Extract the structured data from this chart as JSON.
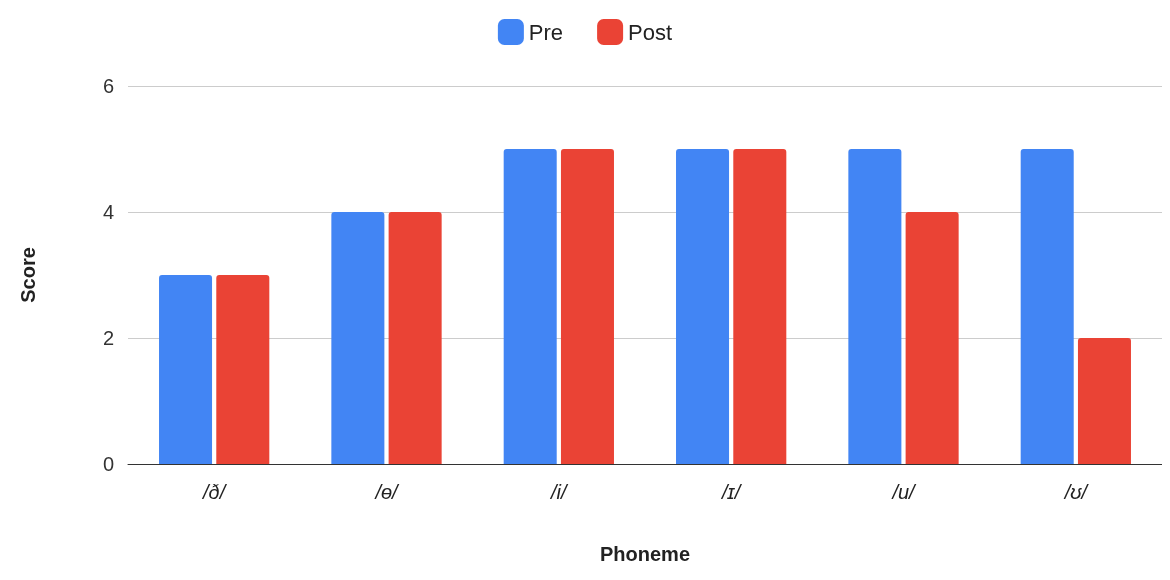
{
  "chart_data": {
    "type": "bar",
    "xlabel": "Phoneme",
    "ylabel": "Score",
    "categories": [
      "/ð/",
      "/ɵ/",
      "/i/",
      "/ɪ/",
      "/u/",
      "/ʊ/"
    ],
    "series": [
      {
        "name": "Pre",
        "color": "#4285f4",
        "values": [
          3,
          4,
          5,
          5,
          5,
          5
        ]
      },
      {
        "name": "Post",
        "color": "#ea4335",
        "values": [
          3,
          4,
          5,
          5,
          4,
          2
        ]
      }
    ],
    "ylim": [
      0,
      6
    ],
    "yticks": [
      0,
      2,
      4,
      6
    ],
    "grid": "y",
    "legend": "top"
  }
}
